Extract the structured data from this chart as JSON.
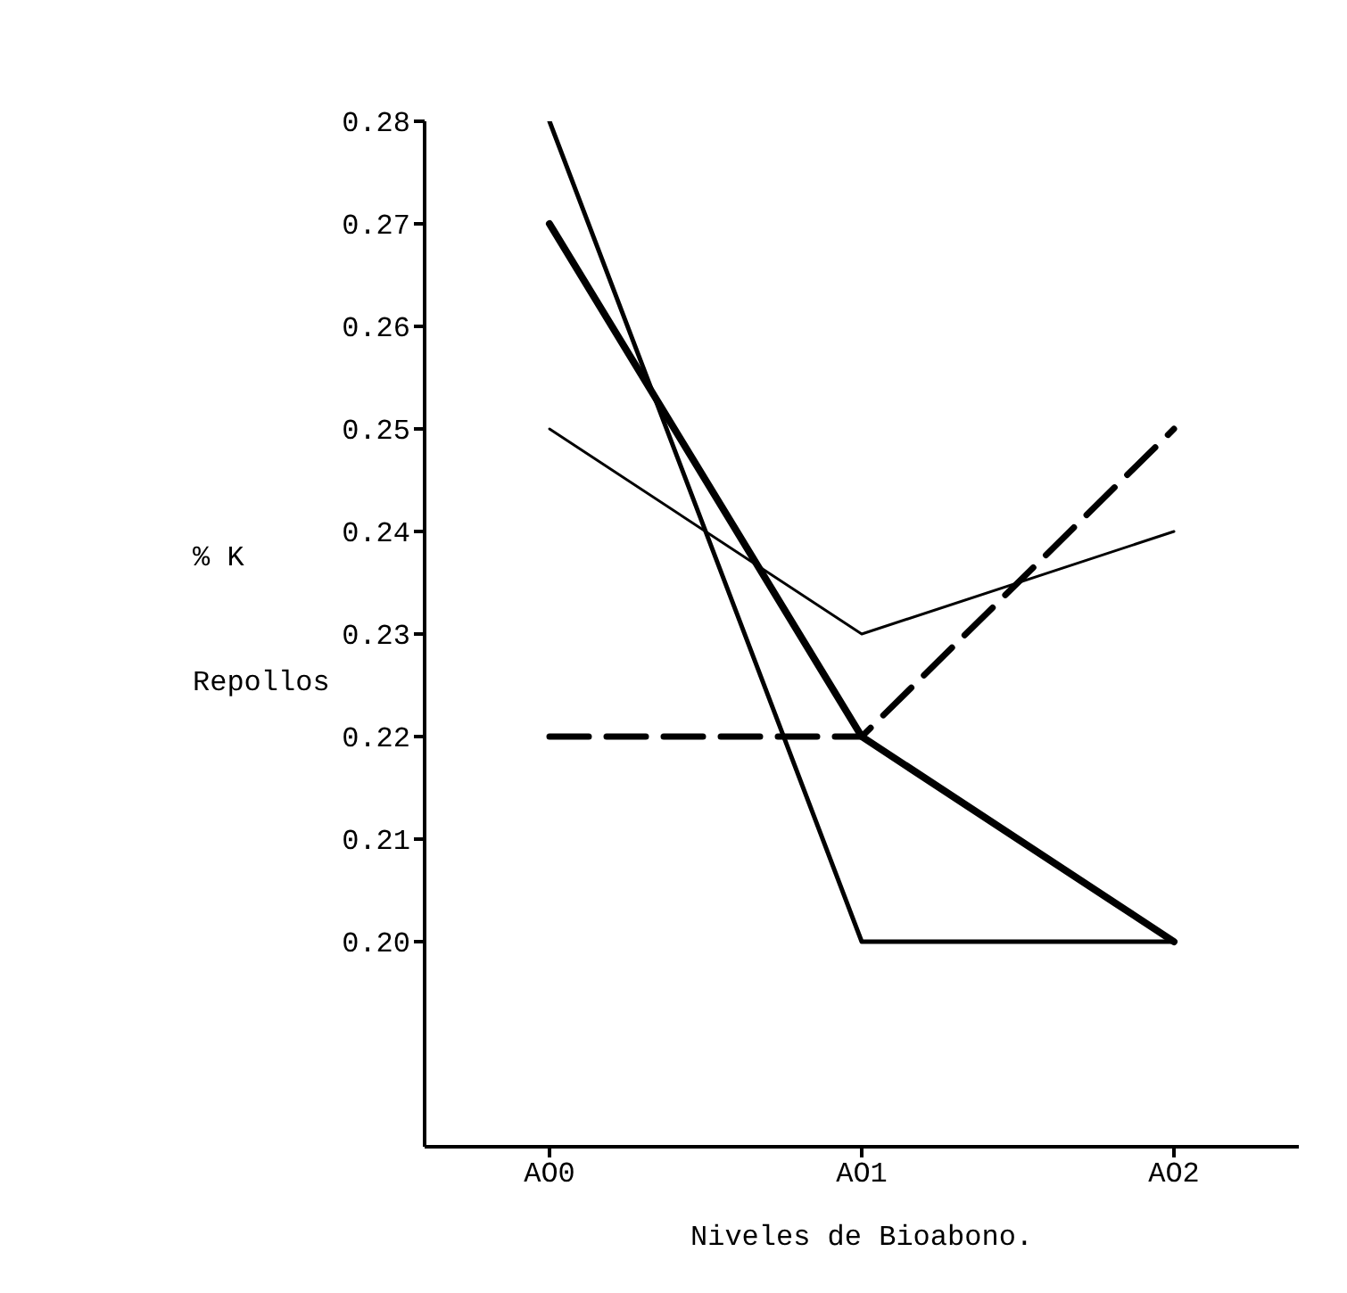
{
  "chart_data": {
    "type": "line",
    "xlabel": "Niveles de Bioabono.",
    "ylabel": "% K Repollos",
    "categories": [
      "AO0",
      "AO1",
      "AO2"
    ],
    "series": [
      {
        "color": "#000000",
        "values": [
          0.25,
          0.23,
          0.24
        ],
        "line_style": "solid"
      },
      {
        "color": "#000000",
        "values": [
          0.28,
          0.2,
          0.2
        ],
        "line_style": "solid"
      },
      {
        "color": "#000000",
        "values": [
          0.27,
          0.22,
          0.2
        ],
        "line_style": "solid"
      },
      {
        "color": "#000000",
        "values": [
          0.22,
          0.22,
          0.25
        ],
        "line_style": "dashed"
      }
    ],
    "ylim": [
      0.18,
      0.28
    ],
    "yticks": [
      {
        "value": 0.2,
        "label": "0.20"
      },
      0.21,
      0.22,
      0.23,
      0.24,
      0.25,
      0.26,
      0.27,
      0.28
    ],
    "grid": false,
    "legend": false,
    "marker": "none"
  }
}
